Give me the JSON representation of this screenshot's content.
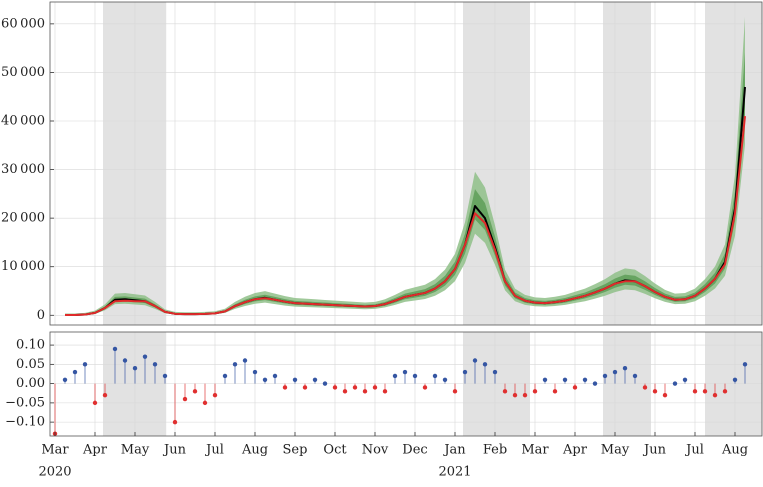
{
  "chart_data": [
    {
      "type": "line",
      "xlim": [
        -0.125,
        17.675
      ],
      "ylim": [
        -2000,
        64500
      ],
      "yticks": [
        0,
        {
          "value": 10000,
          "label": "10 000"
        },
        {
          "value": 20000,
          "label": "20 000"
        },
        {
          "value": 30000,
          "label": "30 000"
        },
        {
          "value": 40000,
          "label": "40 000"
        },
        {
          "value": 50000,
          "label": "50 000"
        },
        {
          "value": 60000,
          "label": "60 000"
        }
      ],
      "grid": true,
      "shaded_regions": [
        [
          1.2,
          2.78
        ],
        [
          10.2,
          11.875
        ],
        [
          13.7,
          14.9
        ],
        [
          16.25,
          17.675
        ]
      ],
      "x": [
        0.25,
        0.5,
        0.75,
        1,
        1.25,
        1.5,
        1.75,
        2,
        2.25,
        2.5,
        2.75,
        3,
        3.25,
        3.5,
        3.75,
        4,
        4.25,
        4.5,
        4.75,
        5,
        5.25,
        5.5,
        5.75,
        6,
        6.25,
        6.5,
        6.75,
        7,
        7.25,
        7.5,
        7.75,
        8,
        8.25,
        8.5,
        8.75,
        9,
        9.25,
        9.5,
        9.75,
        10,
        10.25,
        10.5,
        10.75,
        11,
        11.25,
        11.5,
        11.75,
        12,
        12.25,
        12.5,
        12.75,
        13,
        13.25,
        13.5,
        13.75,
        14,
        14.25,
        14.5,
        14.75,
        15,
        15.25,
        15.5,
        15.75,
        16,
        16.25,
        16.5,
        16.75,
        17,
        17.25
      ],
      "bands": [
        {
          "color": "#8fbf88",
          "upper": [
            365,
            378,
            495,
            950,
            2250,
            4460,
            4590,
            4330,
            4070,
            2770,
            1210,
            690,
            625,
            625,
            690,
            820,
            1340,
            2770,
            3810,
            4590,
            4980,
            4460,
            3940,
            3550,
            3420,
            3290,
            3160,
            3030,
            2900,
            2770,
            2640,
            2770,
            3290,
            4200,
            5240,
            5760,
            6280,
            7450,
            9400,
            12650,
            19150,
            29550,
            26300,
            18500,
            9400,
            5500,
            4200,
            3680,
            3550,
            3810,
            4200,
            4850,
            5500,
            6410,
            7450,
            8750,
            9660,
            9400,
            8100,
            6540,
            5240,
            4460,
            4590,
            5500,
            7450,
            10050,
            14600,
            28900,
            61400
          ],
          "lower": [
            -60,
            -55,
            10,
            275,
            1025,
            2300,
            2375,
            2225,
            2075,
            1325,
            425,
            125,
            90,
            90,
            125,
            200,
            500,
            1325,
            1925,
            2375,
            2600,
            2300,
            2000,
            1775,
            1700,
            1625,
            1550,
            1475,
            1400,
            1325,
            1250,
            1325,
            1625,
            2150,
            2750,
            3050,
            3350,
            4025,
            5150,
            7025,
            10775,
            16775,
            14900,
            10400,
            5150,
            2900,
            2150,
            1850,
            1775,
            1925,
            2150,
            2525,
            2900,
            3425,
            4025,
            4775,
            5300,
            5150,
            4400,
            3500,
            2750,
            2300,
            2375,
            2900,
            4025,
            5525,
            8150,
            16400,
            35150
          ]
        },
        {
          "color": "#5e9e58",
          "upper": [
            158,
            169,
            273,
            675,
            1825,
            3780,
            3895,
            3665,
            3435,
            2285,
            905,
            445,
            388,
            388,
            445,
            560,
            1020,
            2285,
            3205,
            3895,
            4240,
            3780,
            3320,
            2975,
            2860,
            2745,
            2630,
            2515,
            2400,
            2285,
            2170,
            2285,
            2745,
            3550,
            4470,
            4930,
            5390,
            6425,
            8150,
            11025,
            16775,
            25975,
            23100,
            16200,
            8150,
            4700,
            3550,
            3090,
            2975,
            3205,
            3550,
            4125,
            4700,
            5505,
            6425,
            7575,
            8380,
            8150,
            7000,
            5620,
            4470,
            3780,
            3895,
            4700,
            6425,
            8725,
            12750,
            25400,
            54150
          ],
          "lower": [
            -6,
            3,
            82,
            390,
            1270,
            2766,
            2854,
            2678,
            2502,
            1622,
            566,
            214,
            170,
            170,
            214,
            302,
            654,
            1622,
            2326,
            2854,
            3118,
            2766,
            2414,
            2150,
            2062,
            1974,
            1886,
            1798,
            1710,
            1622,
            1534,
            1622,
            1974,
            2590,
            3294,
            3646,
            3998,
            4790,
            6110,
            8310,
            12710,
            19750,
            17550,
            12270,
            6110,
            3470,
            2590,
            2238,
            2150,
            2326,
            2590,
            3030,
            3470,
            4086,
            4790,
            5670,
            6286,
            6110,
            5230,
            4174,
            3294,
            2766,
            2854,
            3470,
            4790,
            6550,
            9630,
            19310,
            41310
          ]
        }
      ],
      "series": [
        {
          "color": "#000000",
          "values": [
            50,
            60,
            150,
            500,
            1500,
            3200,
            3300,
            3100,
            2900,
            1900,
            700,
            300,
            250,
            250,
            300,
            400,
            800,
            1900,
            2700,
            3300,
            3600,
            3200,
            2800,
            2500,
            2400,
            2300,
            2200,
            2100,
            2000,
            1900,
            1800,
            1900,
            2300,
            3000,
            3800,
            4200,
            4600,
            5500,
            7000,
            9500,
            14500,
            22500,
            20000,
            14000,
            7000,
            4000,
            3000,
            2600,
            2500,
            2700,
            3000,
            3500,
            4000,
            4700,
            5500,
            6500,
            7200,
            7000,
            6000,
            4800,
            3800,
            3200,
            3300,
            4000,
            5500,
            7500,
            11000,
            22000,
            47000
          ]
        },
        {
          "color": "#e02a2a",
          "values": [
            50,
            60,
            150,
            500,
            1500,
            2900,
            3000,
            2900,
            2900,
            1900,
            700,
            300,
            250,
            250,
            300,
            400,
            800,
            1900,
            2700,
            3300,
            3500,
            3200,
            2800,
            2500,
            2400,
            2300,
            2200,
            2100,
            2000,
            1900,
            1800,
            1900,
            2300,
            3000,
            3800,
            4200,
            4600,
            5500,
            7000,
            9500,
            14500,
            21000,
            19000,
            13500,
            7000,
            4000,
            3000,
            2600,
            2500,
            2700,
            3000,
            3500,
            4000,
            4700,
            5500,
            6500,
            7000,
            7000,
            6000,
            4800,
            3800,
            3200,
            3300,
            4000,
            5500,
            7500,
            10500,
            21000,
            41000
          ]
        }
      ]
    },
    {
      "type": "stem",
      "xlim": [
        -0.125,
        17.675
      ],
      "ylim": [
        -0.136,
        0.134
      ],
      "xticks": [
        {
          "value": 0,
          "label": "Mar"
        },
        {
          "value": 1,
          "label": "Apr"
        },
        {
          "value": 2,
          "label": "May"
        },
        {
          "value": 3,
          "label": "Jun"
        },
        {
          "value": 4,
          "label": "Jul"
        },
        {
          "value": 5,
          "label": "Aug"
        },
        {
          "value": 6,
          "label": "Sep"
        },
        {
          "value": 7,
          "label": "Oct"
        },
        {
          "value": 8,
          "label": "Nov"
        },
        {
          "value": 9,
          "label": "Dec"
        },
        {
          "value": 10,
          "label": "Jan"
        },
        {
          "value": 11,
          "label": "Feb"
        },
        {
          "value": 12,
          "label": "Mar"
        },
        {
          "value": 13,
          "label": "Apr"
        },
        {
          "value": 14,
          "label": "May"
        },
        {
          "value": 15,
          "label": "Jun"
        },
        {
          "value": 16,
          "label": "Jul"
        },
        {
          "value": 17,
          "label": "Aug"
        }
      ],
      "year_labels": [
        {
          "value": 0,
          "label": "2020"
        },
        {
          "value": 10,
          "label": "2021"
        }
      ],
      "yticks": [
        {
          "value": -0.1,
          "label": "−0.10"
        },
        {
          "value": -0.05,
          "label": "−0.05"
        },
        {
          "value": 0,
          "label": "0.00"
        },
        {
          "value": 0.05,
          "label": "0.05"
        },
        {
          "value": 0.1,
          "label": "0.10"
        }
      ],
      "grid": true,
      "shaded_regions": [
        [
          1.2,
          2.78
        ],
        [
          10.2,
          11.875
        ],
        [
          13.7,
          14.9
        ],
        [
          16.25,
          17.675
        ]
      ],
      "positive_color": "#3556a3",
      "negative_color": "#e03030",
      "x": [
        0,
        0.25,
        0.5,
        0.75,
        1,
        1.25,
        1.5,
        1.75,
        2,
        2.25,
        2.5,
        2.75,
        3,
        3.25,
        3.5,
        3.75,
        4,
        4.25,
        4.5,
        4.75,
        5,
        5.25,
        5.5,
        5.75,
        6,
        6.25,
        6.5,
        6.75,
        7,
        7.25,
        7.5,
        7.75,
        8,
        8.25,
        8.5,
        8.75,
        9,
        9.25,
        9.5,
        9.75,
        10,
        10.25,
        10.5,
        10.75,
        11,
        11.25,
        11.5,
        11.75,
        12,
        12.25,
        12.5,
        12.75,
        13,
        13.25,
        13.5,
        13.75,
        14,
        14.25,
        14.5,
        14.75,
        15,
        15.25,
        15.5,
        15.75,
        16,
        16.25,
        16.5,
        16.75,
        17,
        17.25
      ],
      "values": [
        -0.13,
        0.01,
        0.03,
        0.05,
        -0.05,
        -0.03,
        0.09,
        0.06,
        0.04,
        0.07,
        0.05,
        0.02,
        -0.1,
        -0.04,
        -0.02,
        -0.05,
        -0.03,
        0.02,
        0.05,
        0.06,
        0.03,
        0.01,
        0.02,
        -0.01,
        0.01,
        -0.01,
        0.01,
        0,
        -0.01,
        -0.02,
        -0.01,
        -0.02,
        -0.01,
        -0.02,
        0.02,
        0.03,
        0.02,
        -0.01,
        0.02,
        0.01,
        -0.02,
        0.03,
        0.06,
        0.05,
        0.03,
        -0.02,
        -0.03,
        -0.03,
        -0.02,
        0.01,
        -0.02,
        0.01,
        -0.01,
        0.01,
        0,
        0.02,
        0.03,
        0.04,
        0.02,
        -0.01,
        -0.02,
        -0.03,
        0,
        0.01,
        -0.02,
        -0.02,
        -0.03,
        -0.02,
        0.01,
        0.05
      ]
    }
  ]
}
